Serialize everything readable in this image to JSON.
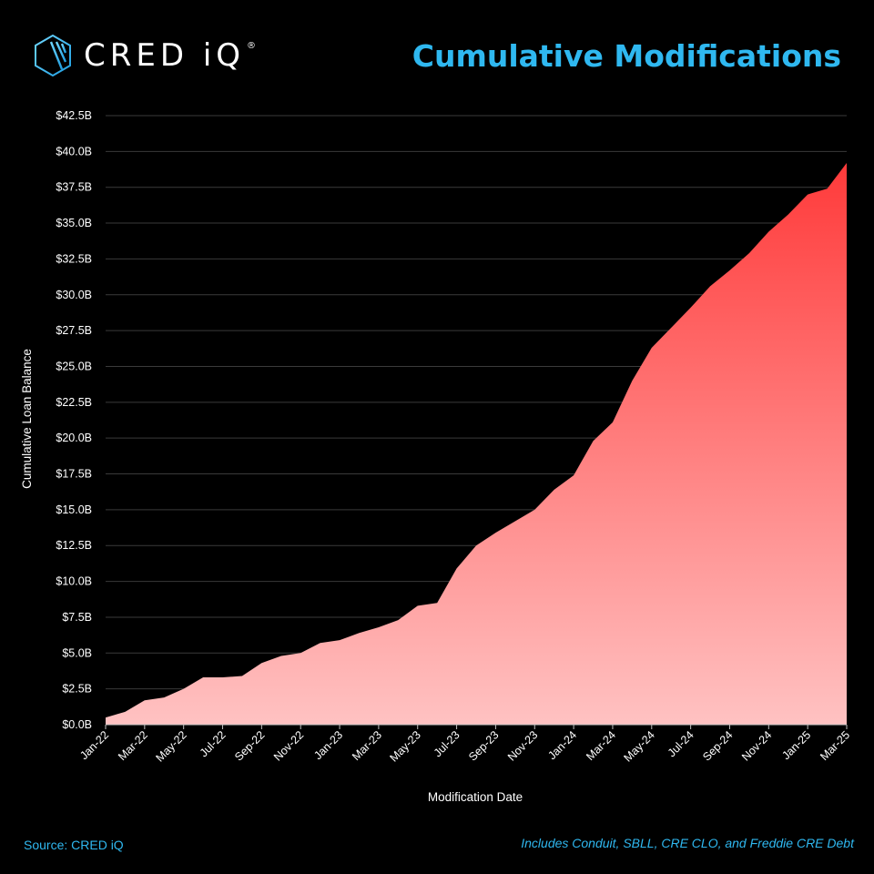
{
  "brand": {
    "name": "CRED iQ",
    "registered": "®"
  },
  "footer": {
    "source": "Source: CRED iQ",
    "note": "Includes Conduit, SBLL, CRE CLO, and Freddie CRE Debt"
  },
  "colors": {
    "accent": "#2fb8f0",
    "area_top": "#ff3a3a",
    "area_bottom": "#ffc2c2",
    "grid": "#3a3a3a"
  },
  "chart_data": {
    "type": "area",
    "title": "Cumulative Modifications",
    "xlabel": "Modification Date",
    "ylabel": "Cumulative Loan Balance",
    "ylim": [
      0,
      42.5
    ],
    "y_unit": "B",
    "y_ticks": [
      "$0.0B",
      "$2.5B",
      "$5.0B",
      "$7.5B",
      "$10.0B",
      "$12.5B",
      "$15.0B",
      "$17.5B",
      "$20.0B",
      "$22.5B",
      "$25.0B",
      "$27.5B",
      "$30.0B",
      "$32.5B",
      "$35.0B",
      "$37.5B",
      "$40.0B",
      "$42.5B"
    ],
    "x_tick_labels": [
      "Jan-22",
      "Mar-22",
      "May-22",
      "Jul-22",
      "Sep-22",
      "Nov-22",
      "Jan-23",
      "Mar-23",
      "May-23",
      "Jul-23",
      "Sep-23",
      "Nov-23",
      "Jan-24",
      "Mar-24",
      "May-24",
      "Jul-24",
      "Sep-24",
      "Nov-24",
      "Jan-25",
      "Mar-25"
    ],
    "grid": true,
    "legend": "none",
    "series": [
      {
        "x": [
          "Jan-22",
          "Feb-22",
          "Mar-22",
          "Apr-22",
          "May-22",
          "Jun-22",
          "Jul-22",
          "Aug-22",
          "Sep-22",
          "Oct-22",
          "Nov-22",
          "Dec-22",
          "Jan-23",
          "Feb-23",
          "Mar-23",
          "Apr-23",
          "May-23",
          "Jun-23",
          "Jul-23",
          "Aug-23",
          "Sep-23",
          "Oct-23",
          "Nov-23",
          "Dec-23",
          "Jan-24",
          "Feb-24",
          "Mar-24",
          "Apr-24",
          "May-24",
          "Jun-24",
          "Jul-24",
          "Aug-24",
          "Sep-24",
          "Oct-24",
          "Nov-24",
          "Dec-24",
          "Jan-25",
          "Feb-25",
          "Mar-25"
        ],
        "values": [
          0.5,
          0.9,
          1.7,
          1.9,
          2.5,
          3.3,
          3.3,
          3.4,
          4.3,
          4.8,
          5.0,
          5.7,
          5.9,
          6.4,
          6.8,
          7.3,
          8.3,
          8.5,
          10.9,
          12.5,
          13.4,
          14.2,
          15.0,
          16.4,
          17.4,
          19.8,
          21.1,
          24.0,
          26.3,
          27.7,
          29.1,
          30.6,
          31.7,
          32.9,
          34.4,
          35.6,
          37.0,
          37.4,
          39.2
        ]
      }
    ]
  }
}
